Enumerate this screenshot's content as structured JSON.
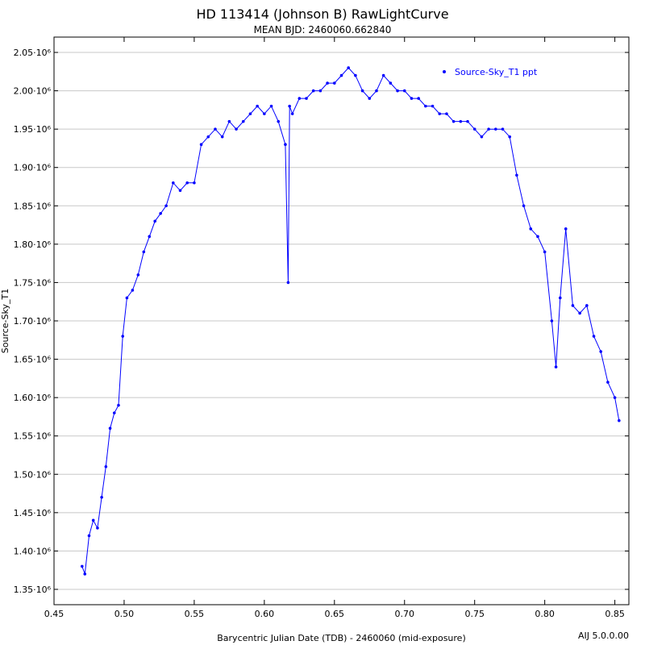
{
  "chart_data": {
    "type": "scatter",
    "title": "HD 113414 (Johnson B) RawLightCurve",
    "subtitle": "MEAN BJD: 2460060.662840",
    "xlabel": "Barycentric Julian Date (TDB) - 2460060 (mid-exposure)",
    "ylabel": "Source-Sky_T1",
    "xlim": [
      0.45,
      0.86
    ],
    "ylim": [
      1.33,
      2.07
    ],
    "x_ticks": [
      0.45,
      0.5,
      0.55,
      0.6,
      0.65,
      0.7,
      0.75,
      0.8,
      0.85
    ],
    "x_tick_labels": [
      "0.45",
      "0.50",
      "0.55",
      "0.60",
      "0.65",
      "0.70",
      "0.75",
      "0.80",
      "0.85"
    ],
    "y_ticks": [
      1.35,
      1.4,
      1.45,
      1.5,
      1.55,
      1.6,
      1.65,
      1.7,
      1.75,
      1.8,
      1.85,
      1.9,
      1.95,
      2.0,
      2.05
    ],
    "y_tick_labels": [
      "1.35·10⁶",
      "1.40·10⁶",
      "1.45·10⁶",
      "1.50·10⁶",
      "1.55·10⁶",
      "1.60·10⁶",
      "1.65·10⁶",
      "1.70·10⁶",
      "1.75·10⁶",
      "1.80·10⁶",
      "1.85·10⁶",
      "1.90·10⁶",
      "1.95·10⁶",
      "2.00·10⁶",
      "2.05·10⁶"
    ],
    "y_unit_multiplier": 1000000,
    "grid": "horizontal",
    "legend_position": "top-right",
    "series": [
      {
        "name": "Source-Sky_T1 ppt",
        "color": "#0000ff",
        "x": [
          0.47,
          0.472,
          0.475,
          0.478,
          0.481,
          0.484,
          0.487,
          0.49,
          0.493,
          0.496,
          0.499,
          0.502,
          0.506,
          0.51,
          0.514,
          0.518,
          0.522,
          0.526,
          0.53,
          0.535,
          0.54,
          0.545,
          0.55,
          0.555,
          0.56,
          0.565,
          0.57,
          0.575,
          0.58,
          0.585,
          0.59,
          0.595,
          0.6,
          0.605,
          0.61,
          0.615,
          0.617,
          0.618,
          0.62,
          0.625,
          0.63,
          0.635,
          0.64,
          0.645,
          0.65,
          0.655,
          0.66,
          0.665,
          0.67,
          0.675,
          0.68,
          0.685,
          0.69,
          0.695,
          0.7,
          0.705,
          0.71,
          0.715,
          0.72,
          0.725,
          0.73,
          0.735,
          0.74,
          0.745,
          0.75,
          0.755,
          0.76,
          0.765,
          0.77,
          0.775,
          0.78,
          0.785,
          0.79,
          0.795,
          0.8,
          0.805,
          0.808,
          0.811,
          0.815,
          0.82,
          0.825,
          0.83,
          0.835,
          0.84,
          0.845,
          0.85,
          0.853
        ],
        "y": [
          1.38,
          1.37,
          1.42,
          1.44,
          1.43,
          1.47,
          1.51,
          1.56,
          1.58,
          1.59,
          1.68,
          1.73,
          1.74,
          1.76,
          1.79,
          1.81,
          1.83,
          1.84,
          1.85,
          1.88,
          1.87,
          1.88,
          1.88,
          1.93,
          1.94,
          1.95,
          1.94,
          1.96,
          1.95,
          1.96,
          1.97,
          1.98,
          1.97,
          1.98,
          1.96,
          1.93,
          1.75,
          1.98,
          1.97,
          1.99,
          1.99,
          2.0,
          2.0,
          2.01,
          2.01,
          2.02,
          2.03,
          2.02,
          2.0,
          1.99,
          2.0,
          2.02,
          2.01,
          2.0,
          2.0,
          1.99,
          1.99,
          1.98,
          1.98,
          1.97,
          1.97,
          1.96,
          1.96,
          1.96,
          1.95,
          1.94,
          1.95,
          1.95,
          1.95,
          1.94,
          1.89,
          1.85,
          1.82,
          1.81,
          1.79,
          1.7,
          1.64,
          1.73,
          1.82,
          1.72,
          1.71,
          1.72,
          1.68,
          1.66,
          1.62,
          1.6,
          1.57
        ]
      }
    ]
  },
  "footer": {
    "version": "AIJ 5.0.0.00"
  }
}
